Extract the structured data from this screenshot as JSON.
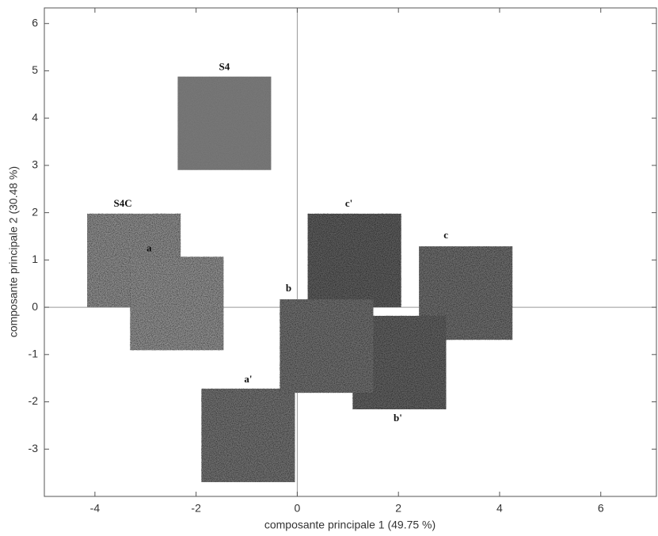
{
  "chart_data": {
    "type": "scatter",
    "xlabel": "composante principale 1 (49.75 %)",
    "ylabel": "composante principale 2 (30.48 %)",
    "xlim": [
      -5,
      7.1
    ],
    "ylim": [
      -4,
      6.33
    ],
    "xticks": [
      -4,
      -2,
      0,
      2,
      4,
      6
    ],
    "yticks": [
      -3,
      -2,
      -1,
      0,
      1,
      2,
      3,
      4,
      5,
      6
    ],
    "zero_lines": true,
    "points": [
      {
        "label": "S4",
        "x": -1.44,
        "y": 3.89,
        "color": "#777777"
      },
      {
        "label": "S4C",
        "x": -3.23,
        "y": 0.99,
        "color": "#8a8a8a"
      },
      {
        "label": "a",
        "x": -2.38,
        "y": 0.08,
        "color": "#8c8c8c"
      },
      {
        "label": "c'",
        "x": 1.13,
        "y": 0.99,
        "color": "#5a5a5a"
      },
      {
        "label": "c",
        "x": 3.33,
        "y": 0.3,
        "color": "#6a6a6a"
      },
      {
        "label": "a'",
        "x": -0.97,
        "y": -2.71,
        "color": "#6e6e6e"
      },
      {
        "label": "b'",
        "x": 2.02,
        "y": -1.17,
        "color": "#5e5e5e"
      },
      {
        "label": "b",
        "x": 0.58,
        "y": -0.82,
        "color": "#6c6c6c"
      }
    ]
  }
}
